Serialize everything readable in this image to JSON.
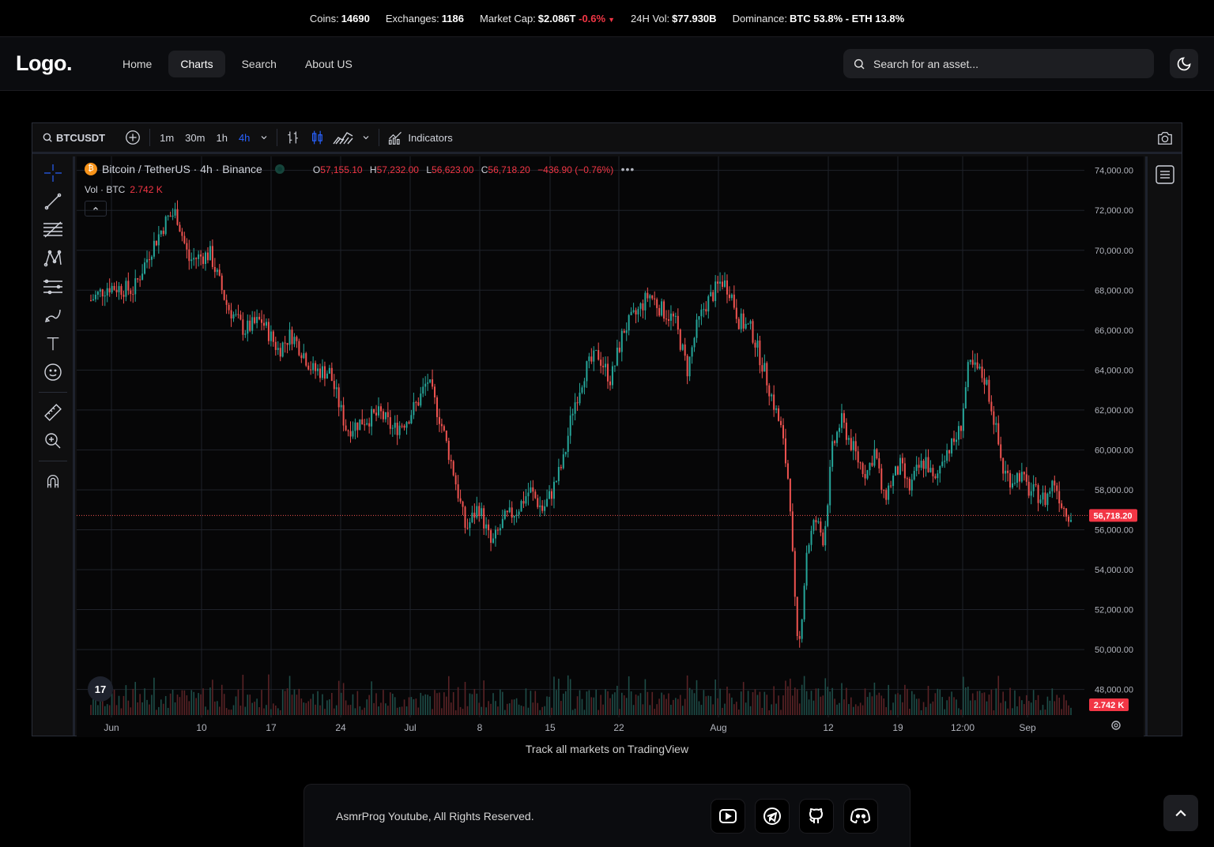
{
  "ticker": {
    "coins_label": "Coins:",
    "coins": "14690",
    "exchanges_label": "Exchanges:",
    "exchanges": "1186",
    "mcap_label": "Market Cap:",
    "mcap": "$2.086T",
    "mcap_change": "-0.6%",
    "vol_label": "24H Vol:",
    "vol": "$77.930B",
    "dom_label": "Dominance:",
    "dom": "BTC 53.8% - ETH 13.8%"
  },
  "nav": {
    "logo": "Logo.",
    "items": [
      "Home",
      "Charts",
      "Search",
      "About US"
    ],
    "active": "Charts",
    "search_placeholder": "Search for an asset..."
  },
  "chart_toolbar": {
    "symbol": "BTCUSDT",
    "timeframes": [
      "1m",
      "30m",
      "1h",
      "4h"
    ],
    "active_timeframe": "4h",
    "indicators_label": "Indicators"
  },
  "chart_legend": {
    "title": "Bitcoin / TetherUS · 4h · Binance",
    "o_label": "O",
    "o": "57,155.10",
    "h_label": "H",
    "h": "57,232.00",
    "l_label": "L",
    "l": "56,623.00",
    "c_label": "C",
    "c": "56,718.20",
    "change": "−436.90 (−0.76%)",
    "vol_label": "Vol · BTC",
    "vol_value": "2.742 K"
  },
  "chart_data": {
    "type": "candlestick",
    "title": "Bitcoin / TetherUS · 4h · Binance",
    "x_ticks": [
      "Jun",
      "10",
      "17",
      "24",
      "Jul",
      "8",
      "15",
      "22",
      "Aug",
      "12",
      "19",
      "12:00",
      "Sep"
    ],
    "y_ticks": [
      "74,000.00",
      "72,000.00",
      "70,000.00",
      "68,000.00",
      "66,000.00",
      "64,000.00",
      "62,000.00",
      "60,000.00",
      "58,000.00",
      "56,000.00",
      "54,000.00",
      "52,000.00",
      "50,000.00",
      "48,000.00"
    ],
    "ylim": [
      46600,
      74700
    ],
    "last_price_label": "56,718.20",
    "last_price": 56718.2,
    "last_volume_label": "2.742 K",
    "price_path": [
      [
        0,
        67500
      ],
      [
        0.02,
        68200
      ],
      [
        0.05,
        68000
      ],
      [
        0.07,
        70000
      ],
      [
        0.09,
        71600
      ],
      [
        0.1,
        71900
      ],
      [
        0.115,
        69500
      ],
      [
        0.13,
        69700
      ],
      [
        0.14,
        69800
      ],
      [
        0.16,
        67200
      ],
      [
        0.18,
        66000
      ],
      [
        0.2,
        66500
      ],
      [
        0.22,
        65000
      ],
      [
        0.235,
        65800
      ],
      [
        0.25,
        64800
      ],
      [
        0.26,
        64000
      ],
      [
        0.28,
        63900
      ],
      [
        0.3,
        61000
      ],
      [
        0.32,
        61500
      ],
      [
        0.34,
        61800
      ],
      [
        0.355,
        61000
      ],
      [
        0.37,
        61500
      ],
      [
        0.385,
        62500
      ],
      [
        0.395,
        63500
      ],
      [
        0.41,
        61500
      ],
      [
        0.425,
        59000
      ],
      [
        0.44,
        56000
      ],
      [
        0.455,
        57200
      ],
      [
        0.47,
        55200
      ],
      [
        0.485,
        56500
      ],
      [
        0.5,
        57000
      ],
      [
        0.515,
        58000
      ],
      [
        0.53,
        57000
      ],
      [
        0.54,
        57800
      ],
      [
        0.555,
        59500
      ],
      [
        0.565,
        62000
      ],
      [
        0.58,
        64000
      ],
      [
        0.595,
        64800
      ],
      [
        0.61,
        63500
      ],
      [
        0.625,
        66000
      ],
      [
        0.64,
        66800
      ],
      [
        0.655,
        67800
      ],
      [
        0.67,
        67000
      ],
      [
        0.685,
        66500
      ],
      [
        0.7,
        64000
      ],
      [
        0.71,
        66000
      ],
      [
        0.72,
        67200
      ],
      [
        0.73,
        67800
      ],
      [
        0.74,
        68500
      ],
      [
        0.75,
        68000
      ],
      [
        0.76,
        66500
      ],
      [
        0.775,
        66000
      ],
      [
        0.79,
        64000
      ],
      [
        0.8,
        62500
      ],
      [
        0.81,
        61000
      ],
      [
        0.82,
        58000
      ],
      [
        0.825,
        53000
      ],
      [
        0.83,
        49500
      ],
      [
        0.84,
        55000
      ],
      [
        0.85,
        56500
      ],
      [
        0.86,
        55500
      ],
      [
        0.87,
        60000
      ],
      [
        0.88,
        61500
      ],
      [
        0.89,
        60500
      ],
      [
        0.9,
        59500
      ],
      [
        0.91,
        58800
      ],
      [
        0.92,
        60000
      ],
      [
        0.93,
        57500
      ],
      [
        0.94,
        58500
      ],
      [
        0.95,
        59200
      ],
      [
        0.96,
        58000
      ],
      [
        0.97,
        59000
      ],
      [
        0.98,
        59500
      ],
      [
        0.99,
        58200
      ],
      [
        1.0,
        59800
      ],
      [
        1.01,
        60200
      ],
      [
        1.02,
        61000
      ],
      [
        1.03,
        64200
      ],
      [
        1.04,
        64000
      ],
      [
        1.05,
        63500
      ],
      [
        1.06,
        61500
      ],
      [
        1.07,
        59000
      ],
      [
        1.08,
        58500
      ],
      [
        1.09,
        58800
      ],
      [
        1.1,
        58000
      ],
      [
        1.11,
        57800
      ],
      [
        1.12,
        57500
      ],
      [
        1.13,
        58500
      ],
      [
        1.14,
        57200
      ],
      [
        1.15,
        56700
      ]
    ]
  },
  "credit": "Track all markets on TradingView",
  "footer": {
    "copyright": "AsmrProg Youtube, All Rights Reserved.",
    "socials": [
      "youtube-icon",
      "telegram-icon",
      "github-icon",
      "discord-icon"
    ]
  },
  "colors": {
    "up": "#26a69a",
    "down": "#ef5350",
    "accent": "#2962ff",
    "neg": "#f23645"
  }
}
